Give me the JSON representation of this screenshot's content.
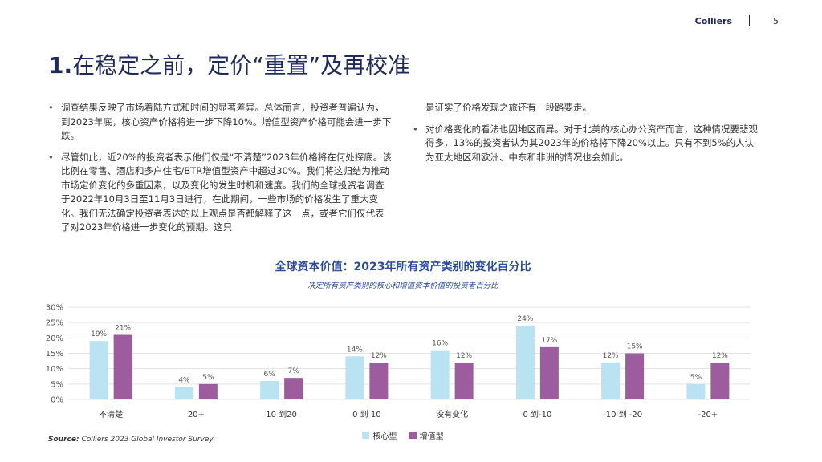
{
  "header": {
    "brand": "Colliers",
    "page_number": "5"
  },
  "title": {
    "number": "1.",
    "text": "在稳定之前，定价“重置”及再校准"
  },
  "body": {
    "left_bullets": [
      "调查结果反映了市场着陆方式和时间的显著差异。总体而言，投资者普遍认为，到2023年底，核心资产价格将进一步下降10%。增值型资产价格可能会进一步下跌。",
      "尽管如此，近20%的投资者表示他们仅是“不清楚”2023年价格将在何处探底。该比例在零售、酒店和多户住宅/BTR增值型资产中超过30%。我们将这归结为推动市场定价变化的多重因素，以及变化的发生时机和速度。我们的全球投资者调查于2022年10月3日至11月3日进行，在此期间，一些市场的价格发生了重大变化。我们无法确定投资者表达的以上观点是否都解释了这一点，或者它们仅代表了对2023年价格进一步变化的预期。这只"
    ],
    "right_continuation": "是证实了价格发现之旅还有一段路要走。",
    "right_bullets": [
      "对价格变化的看法也因地区而异。对于北美的核心办公资产而言，这种情况要悲观得多，13%的投资者认为其2023年的价格将下降20%以上。只有不到5%的人认为亚太地区和欧洲、中东和非洲的情况也会如此。"
    ]
  },
  "chart_data": {
    "type": "bar",
    "title": "全球资本价值：2023年所有资产类别的变化百分比",
    "subtitle": "决定所有资产类别的核心和增值资本价值的投资者百分比",
    "categories": [
      "不清楚",
      "20+",
      "10 到20",
      "0 到 10",
      "没有变化",
      "0 到-10",
      "-10 到 -20",
      "-20+"
    ],
    "series": [
      {
        "name": "核心型",
        "values": [
          19,
          4,
          6,
          14,
          16,
          24,
          12,
          5
        ],
        "color": "#b9e3f3"
      },
      {
        "name": "增值型",
        "values": [
          21,
          5,
          7,
          12,
          12,
          17,
          15,
          12
        ],
        "color": "#9c5c9e"
      }
    ],
    "ylim": [
      0,
      30
    ],
    "yticks": [
      "0%",
      "5%",
      "10%",
      "15%",
      "20%",
      "25%",
      "30%"
    ],
    "value_suffix": "%",
    "grid": true,
    "legend": "bottom-center"
  },
  "source": {
    "label": "Source:",
    "text": "Colliers 2023 Global Investor Survey"
  }
}
